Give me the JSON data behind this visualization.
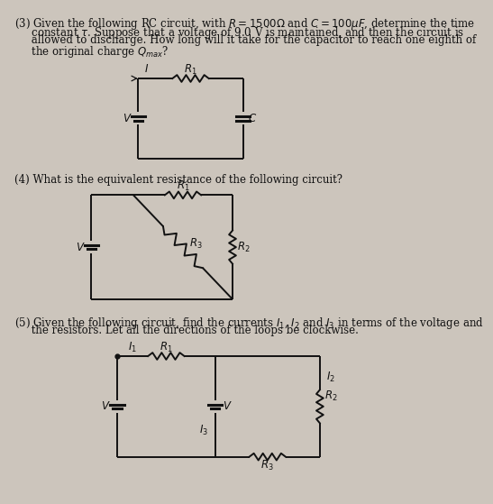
{
  "bg_color": "#ccc5bc",
  "text_color": "#111111",
  "line_color": "#111111",
  "q3_line1": "(3) Given the following RC circuit, with $R = 1500\\Omega$ and $C = 100\\mu F$, determine the time",
  "q3_line2": "     constant $\\tau$. Suppose that a voltage of 9.0 V is maintained, and then the circuit is",
  "q3_line3": "     allowed to discharge. How long will it take for the capacitor to reach one eighth of",
  "q3_line4": "     the original charge $Q_{max}$?",
  "q4_line1": "(4) What is the equivalent resistance of the following circuit?",
  "q5_line1": "(5) Given the following circuit, find the currents $I_1$, $I_2$ and $I_3$ in terms of the voltage and",
  "q5_line2": "     the resistors. Let all the directions of the loops be clockwise.",
  "font_size": 8.5,
  "lw": 1.4
}
